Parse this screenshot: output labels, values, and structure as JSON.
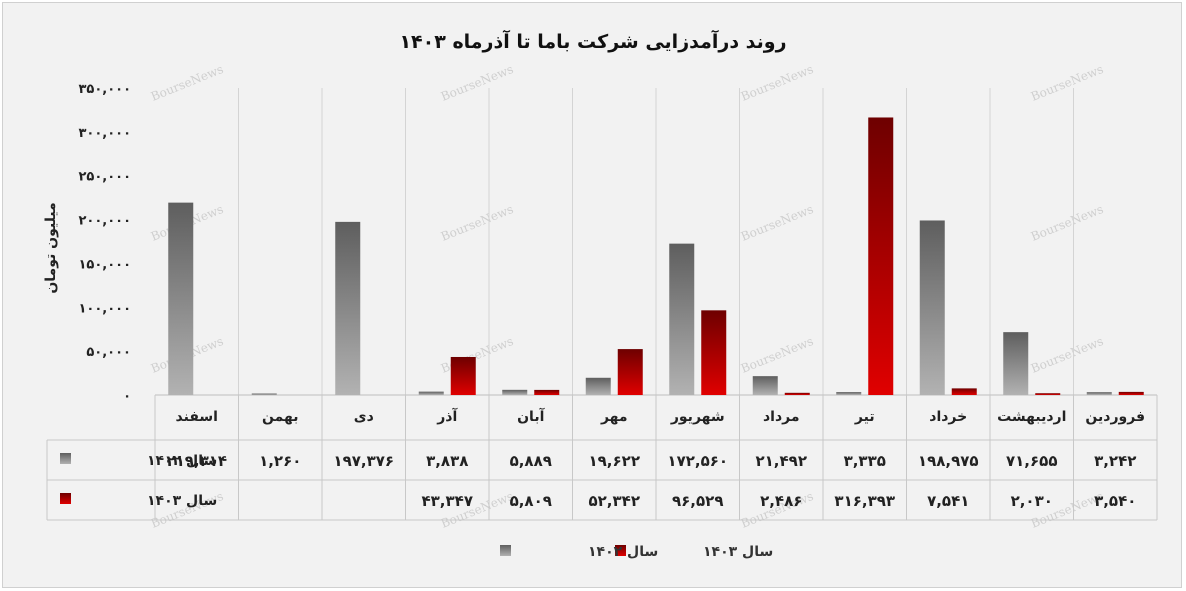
{
  "chart_data": {
    "type": "bar",
    "title": "روند درآمدزایی شرکت باما تا آذرماه ۱۴۰۳",
    "ylabel": "میلیون تومان",
    "xlabel": "",
    "ylim": [
      0,
      350000
    ],
    "yticks": [
      0,
      50000,
      100000,
      150000,
      200000,
      250000,
      300000,
      350000
    ],
    "ytick_labels": [
      "۰",
      "۵۰,۰۰۰",
      "۱۰۰,۰۰۰",
      "۱۵۰,۰۰۰",
      "۲۰۰,۰۰۰",
      "۲۵۰,۰۰۰",
      "۳۰۰,۰۰۰",
      "۳۵۰,۰۰۰"
    ],
    "grid": "vertical",
    "legend_position": "bottom",
    "categories": [
      "فروردین",
      "اردیبهشت",
      "خرداد",
      "تیر",
      "مرداد",
      "شهریور",
      "مهر",
      "آبان",
      "آذر",
      "دی",
      "بهمن",
      "اسفند"
    ],
    "series": [
      {
        "name": "سال ۱۴۰۲",
        "color": "#777777",
        "values": [
          3242,
          71655,
          198975,
          3335,
          21492,
          172560,
          19622,
          5889,
          3838,
          197376,
          1260,
          219314
        ],
        "labels": [
          "۳,۲۴۲",
          "۷۱,۶۵۵",
          "۱۹۸,۹۷۵",
          "۳,۳۳۵",
          "۲۱,۴۹۲",
          "۱۷۲,۵۶۰",
          "۱۹,۶۲۲",
          "۵,۸۸۹",
          "۳,۸۳۸",
          "۱۹۷,۳۷۶",
          "۱,۲۶۰",
          "۲۱۹,۳۱۴"
        ]
      },
      {
        "name": "سال ۱۴۰۳",
        "color": "#b00000",
        "values": [
          3540,
          2030,
          7541,
          316393,
          2486,
          96529,
          52342,
          5809,
          43347,
          null,
          null,
          null
        ],
        "labels": [
          "۳,۵۴۰",
          "۲,۰۳۰",
          "۷,۵۴۱",
          "۳۱۶,۳۹۳",
          "۲,۴۸۶",
          "۹۶,۵۲۹",
          "۵۲,۳۴۲",
          "۵,۸۰۹",
          "۴۳,۳۴۷",
          "",
          "",
          ""
        ]
      }
    ],
    "watermark": "BourseNews"
  }
}
